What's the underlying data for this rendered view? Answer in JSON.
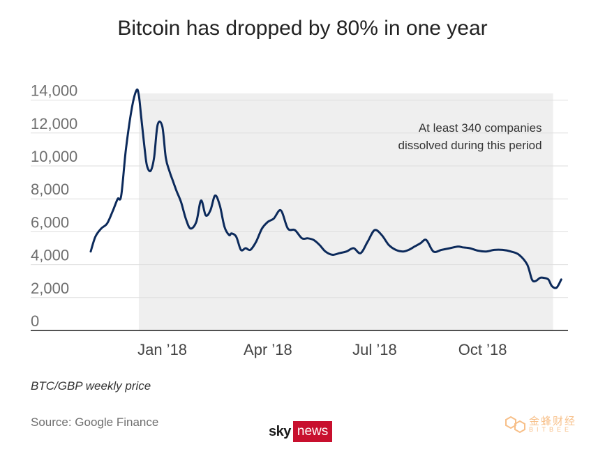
{
  "title": "Bitcoin has dropped by 80% in one year",
  "note": "BTC/GBP weekly price",
  "source": "Source: Google Finance",
  "logo": {
    "sky": "sky",
    "news": "news"
  },
  "watermark": {
    "cn": "金蜂财经",
    "en": "BITBEE",
    "color": "#f28c28"
  },
  "chart_data": {
    "type": "line",
    "ylim": [
      0,
      15000
    ],
    "yticks": [
      0,
      2000,
      4000,
      6000,
      8000,
      10000,
      12000,
      14000
    ],
    "ytick_labels": [
      "0",
      "2,000",
      "4,000",
      "6,000",
      "8,000",
      "10,000",
      "12,000",
      "14,000"
    ],
    "xlim": [
      "2017-11-01",
      "2018-12-08"
    ],
    "xticks": [
      {
        "label": "Jan ’18",
        "date": "2018-01-01"
      },
      {
        "label": "Apr ’18",
        "date": "2018-04-01"
      },
      {
        "label": "Jul ’18",
        "date": "2018-07-01"
      },
      {
        "label": "Oct ’18",
        "date": "2018-10-01"
      }
    ],
    "grid": true,
    "shaded_period": [
      "2017-12-12",
      "2018-11-30"
    ],
    "annotation": {
      "lines": [
        "At least 340 companies",
        "dissolved during this period"
      ],
      "anchor": "top-right of shaded period"
    },
    "line_color": "#0c2a5b",
    "series": [
      {
        "x": [
          "2017-11-01",
          "2017-11-05",
          "2017-11-10",
          "2017-11-15",
          "2017-11-20",
          "2017-11-24",
          "2017-11-27",
          "2017-12-01",
          "2017-12-06",
          "2017-12-10",
          "2017-12-12",
          "2017-12-14",
          "2017-12-17",
          "2017-12-19",
          "2017-12-22",
          "2017-12-25",
          "2017-12-28",
          "2018-01-01",
          "2018-01-04",
          "2018-01-07",
          "2018-01-10",
          "2018-01-13",
          "2018-01-17",
          "2018-01-21",
          "2018-01-25",
          "2018-01-30",
          "2018-02-03",
          "2018-02-07",
          "2018-02-11",
          "2018-02-15",
          "2018-02-19",
          "2018-02-23",
          "2018-02-27",
          "2018-03-01",
          "2018-03-05",
          "2018-03-09",
          "2018-03-13",
          "2018-03-17",
          "2018-03-22",
          "2018-03-27",
          "2018-04-01",
          "2018-04-06",
          "2018-04-12",
          "2018-04-18",
          "2018-04-24",
          "2018-04-30",
          "2018-05-05",
          "2018-05-10",
          "2018-05-15",
          "2018-05-20",
          "2018-05-26",
          "2018-06-01",
          "2018-06-07",
          "2018-06-13",
          "2018-06-19",
          "2018-06-25",
          "2018-07-01",
          "2018-07-07",
          "2018-07-13",
          "2018-07-19",
          "2018-07-25",
          "2018-07-30",
          "2018-08-04",
          "2018-08-09",
          "2018-08-14",
          "2018-08-20",
          "2018-08-27",
          "2018-09-03",
          "2018-09-10",
          "2018-09-14",
          "2018-09-20",
          "2018-09-27",
          "2018-10-04",
          "2018-10-11",
          "2018-10-18",
          "2018-10-25",
          "2018-11-01",
          "2018-11-08",
          "2018-11-12",
          "2018-11-15",
          "2018-11-19",
          "2018-11-22",
          "2018-11-26",
          "2018-11-29",
          "2018-12-03",
          "2018-12-07"
        ],
        "values": [
          4800,
          5700,
          6200,
          6500,
          7300,
          8000,
          8200,
          11000,
          13500,
          14600,
          14300,
          13000,
          11000,
          10000,
          9700,
          10500,
          12500,
          12400,
          10500,
          9700,
          9100,
          8500,
          7800,
          6800,
          6200,
          6600,
          7900,
          7000,
          7300,
          8200,
          7600,
          6300,
          5800,
          5900,
          5700,
          4900,
          5000,
          4900,
          5400,
          6200,
          6600,
          6800,
          7300,
          6200,
          6100,
          5600,
          5600,
          5500,
          5200,
          4800,
          4600,
          4700,
          4800,
          5000,
          4700,
          5400,
          6100,
          5800,
          5200,
          4900,
          4800,
          4900,
          5100,
          5300,
          5500,
          4800,
          4900,
          5000,
          5100,
          5050,
          5000,
          4850,
          4800,
          4900,
          4900,
          4800,
          4600,
          4000,
          3100,
          3000,
          3200,
          3200,
          3100,
          2700,
          2600,
          3100
        ]
      }
    ]
  }
}
